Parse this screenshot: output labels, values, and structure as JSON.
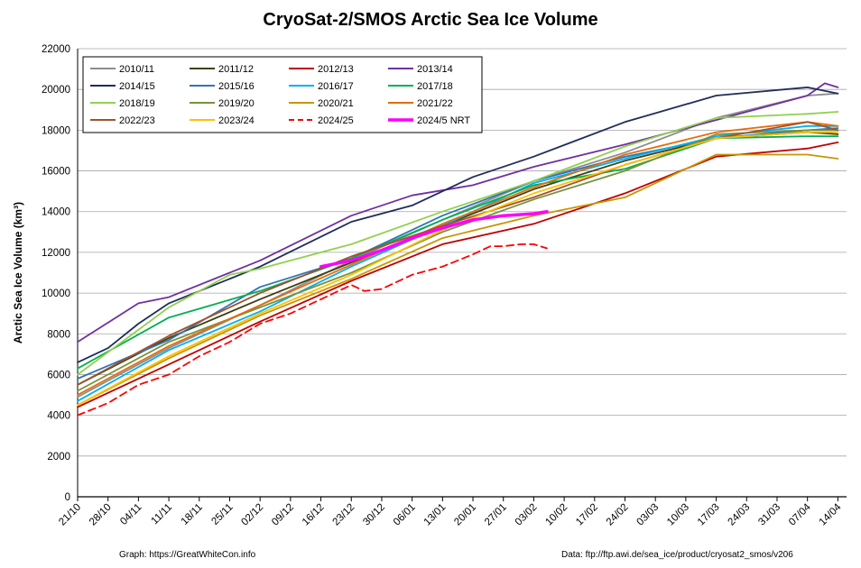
{
  "chart_data": {
    "type": "line",
    "title": "CryoSat-2/SMOS Arctic Sea Ice Volume",
    "ylabel": "Arctic Sea Ice Volume (km³)",
    "xlabel": "",
    "ylim": [
      0,
      22000
    ],
    "yticks": [
      0,
      2000,
      4000,
      6000,
      8000,
      10000,
      12000,
      14000,
      16000,
      18000,
      20000,
      22000
    ],
    "xlim": [
      "21/10",
      "16/04"
    ],
    "xticks": [
      "21/10",
      "28/10",
      "04/11",
      "11/11",
      "18/11",
      "25/11",
      "02/12",
      "09/12",
      "16/12",
      "23/12",
      "30/12",
      "06/01",
      "13/01",
      "20/01",
      "27/01",
      "03/02",
      "10/02",
      "17/02",
      "24/02",
      "03/03",
      "10/03",
      "17/03",
      "24/03",
      "31/03",
      "07/04",
      "14/04"
    ],
    "grid": "horizontal",
    "legend_position": "top-left",
    "credit_left": "Graph: https://GreatWhiteCon.info",
    "credit_right": "Data: ftp://ftp.awi.de/sea_ice/product/cryosat2_smos/v206",
    "series": [
      {
        "name": "2010/11",
        "color": "#8c8c8c",
        "style": "solid",
        "x": [
          "21/10",
          "11/11",
          "02/12",
          "23/12",
          "13/01",
          "03/02",
          "24/02",
          "17/03",
          "07/04",
          "14/04"
        ],
        "values": [
          4900,
          7300,
          9400,
          11600,
          13600,
          15500,
          16900,
          18600,
          19700,
          19800
        ]
      },
      {
        "name": "2011/12",
        "color": "#3f3f14",
        "style": "solid",
        "x": [
          "21/10",
          "11/11",
          "02/12",
          "23/12",
          "13/01",
          "03/02",
          "24/02",
          "17/03",
          "07/04",
          "14/04"
        ],
        "values": [
          5500,
          7800,
          9700,
          11500,
          13300,
          15100,
          16500,
          17600,
          17900,
          17800
        ]
      },
      {
        "name": "2012/13",
        "color": "#c00000",
        "style": "solid",
        "x": [
          "21/10",
          "11/11",
          "02/12",
          "23/12",
          "13/01",
          "03/02",
          "24/02",
          "17/03",
          "07/04",
          "14/04"
        ],
        "values": [
          4400,
          6500,
          8600,
          10600,
          12400,
          13400,
          14900,
          16700,
          17100,
          17400
        ]
      },
      {
        "name": "2013/14",
        "color": "#7030a0",
        "style": "solid",
        "x": [
          "21/10",
          "04/11",
          "11/11",
          "02/12",
          "23/12",
          "06/01",
          "20/01",
          "03/02",
          "24/02",
          "17/03",
          "07/04",
          "11/04",
          "14/04"
        ],
        "values": [
          7600,
          9500,
          9800,
          11600,
          13800,
          14800,
          15300,
          16200,
          17300,
          18500,
          19700,
          20300,
          20100
        ]
      },
      {
        "name": "2014/15",
        "color": "#1f2d5c",
        "style": "solid",
        "x": [
          "21/10",
          "28/10",
          "04/11",
          "11/11",
          "02/12",
          "23/12",
          "06/01",
          "20/01",
          "03/02",
          "24/02",
          "17/03",
          "07/04",
          "14/04"
        ],
        "values": [
          6600,
          7300,
          8500,
          9500,
          11300,
          13500,
          14300,
          15700,
          16700,
          18400,
          19700,
          20100,
          19800
        ]
      },
      {
        "name": "2015/16",
        "color": "#2e75b6",
        "style": "solid",
        "x": [
          "21/10",
          "11/11",
          "02/12",
          "23/12",
          "13/01",
          "03/02",
          "24/02",
          "17/03",
          "07/04",
          "14/04"
        ],
        "values": [
          5800,
          7700,
          10300,
          11700,
          13800,
          15500,
          16700,
          17600,
          18000,
          18100
        ]
      },
      {
        "name": "2016/17",
        "color": "#00b0f0",
        "style": "solid",
        "x": [
          "21/10",
          "11/11",
          "02/12",
          "23/12",
          "13/01",
          "03/02",
          "24/02",
          "17/03",
          "07/04",
          "14/04"
        ],
        "values": [
          4700,
          7200,
          9100,
          11300,
          13300,
          15400,
          16600,
          17700,
          18200,
          18200
        ]
      },
      {
        "name": "2017/18",
        "color": "#00b050",
        "style": "solid",
        "x": [
          "21/10",
          "11/11",
          "02/12",
          "23/12",
          "13/01",
          "03/02",
          "24/02",
          "17/03",
          "07/04",
          "14/04"
        ],
        "values": [
          6300,
          8800,
          10100,
          11700,
          13600,
          15300,
          16100,
          17600,
          17700,
          17700
        ]
      },
      {
        "name": "2018/19",
        "color": "#92d050",
        "style": "solid",
        "x": [
          "21/10",
          "11/11",
          "25/11",
          "02/12",
          "23/12",
          "13/01",
          "03/02",
          "24/02",
          "17/03",
          "07/04",
          "14/04"
        ],
        "values": [
          6000,
          9300,
          10900,
          11200,
          12400,
          14000,
          15500,
          17200,
          18600,
          18800,
          18900
        ]
      },
      {
        "name": "2019/20",
        "color": "#77933c",
        "style": "solid",
        "x": [
          "21/10",
          "11/11",
          "02/12",
          "23/12",
          "13/01",
          "03/02",
          "24/02",
          "17/03",
          "07/04",
          "14/04"
        ],
        "values": [
          5200,
          7600,
          9300,
          11000,
          13000,
          14600,
          16000,
          17800,
          18000,
          18000
        ]
      },
      {
        "name": "2020/21",
        "color": "#c89600",
        "style": "solid",
        "x": [
          "21/10",
          "11/11",
          "02/12",
          "23/12",
          "13/01",
          "03/02",
          "24/02",
          "17/03",
          "07/04",
          "14/04"
        ],
        "values": [
          4500,
          6800,
          8900,
          10700,
          12700,
          13800,
          14700,
          16800,
          16800,
          16600
        ]
      },
      {
        "name": "2021/22",
        "color": "#e46c0a",
        "style": "solid",
        "x": [
          "21/10",
          "11/11",
          "02/12",
          "23/12",
          "13/01",
          "03/02",
          "24/02",
          "17/03",
          "07/04",
          "14/04"
        ],
        "values": [
          5000,
          7400,
          9400,
          11400,
          13400,
          15200,
          16800,
          17900,
          18400,
          18200
        ]
      },
      {
        "name": "2022/23",
        "color": "#a0522d",
        "style": "solid",
        "x": [
          "21/10",
          "11/11",
          "02/12",
          "23/12",
          "13/01",
          "03/02",
          "24/02",
          "17/03",
          "07/04",
          "14/04"
        ],
        "values": [
          5500,
          7900,
          10000,
          11800,
          13300,
          14700,
          16300,
          17600,
          18400,
          18000
        ]
      },
      {
        "name": "2023/24",
        "color": "#ffc000",
        "style": "solid",
        "x": [
          "21/10",
          "11/11",
          "02/12",
          "23/12",
          "13/01",
          "03/02",
          "24/02",
          "17/03",
          "07/04",
          "14/04"
        ],
        "values": [
          4500,
          6900,
          9000,
          10900,
          13100,
          14900,
          16300,
          17600,
          17900,
          17900
        ]
      },
      {
        "name": "2024/25",
        "color": "#ff0000",
        "style": "dashed",
        "x": [
          "21/10",
          "28/10",
          "04/11",
          "11/11",
          "18/11",
          "25/11",
          "02/12",
          "09/12",
          "16/12",
          "23/12",
          "26/12",
          "30/12",
          "06/01",
          "13/01",
          "20/01",
          "24/01",
          "27/01",
          "31/01",
          "03/02",
          "06/02"
        ],
        "values": [
          4000,
          4600,
          5500,
          6000,
          6900,
          7600,
          8500,
          9000,
          9700,
          10400,
          10100,
          10200,
          10900,
          11300,
          11900,
          12300,
          12300,
          12400,
          12400,
          12200
        ]
      },
      {
        "name": "2024/5 NRT",
        "color": "#ff00ff",
        "style": "solid",
        "thick": true,
        "x": [
          "16/12",
          "23/12",
          "30/12",
          "06/01",
          "13/01",
          "20/01",
          "27/01",
          "03/02",
          "06/02"
        ],
        "values": [
          11300,
          11600,
          12100,
          12700,
          13200,
          13600,
          13800,
          13900,
          14000
        ]
      }
    ]
  }
}
